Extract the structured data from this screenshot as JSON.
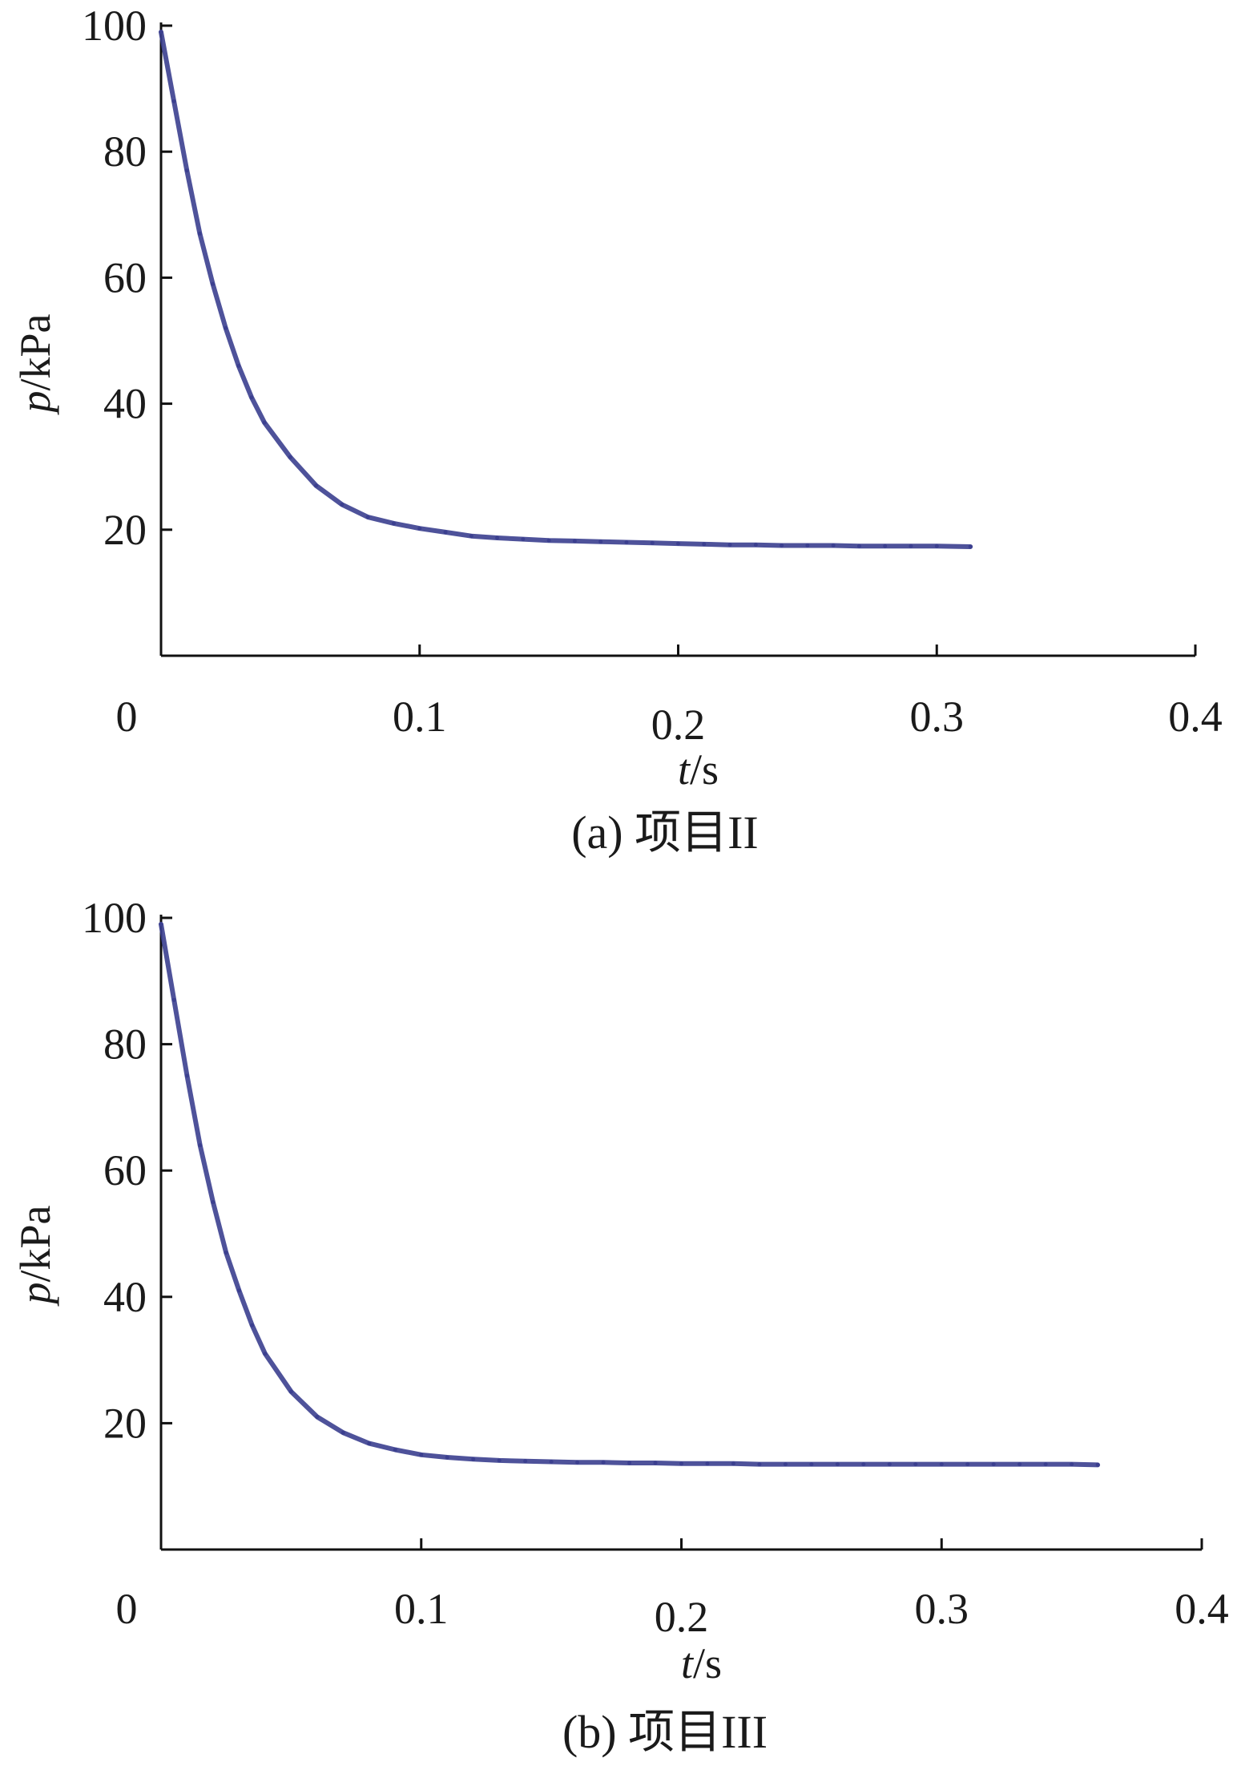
{
  "chart_data": [
    {
      "type": "line",
      "caption": "(a)  项目II",
      "xlabel_var": "t",
      "xlabel_unit": "/s",
      "ylabel_var": "p",
      "ylabel_unit": "/kPa",
      "xlim": [
        0,
        0.4
      ],
      "ylim": [
        0,
        100
      ],
      "xticks": [
        0,
        0.1,
        0.2,
        0.3,
        0.4
      ],
      "xtick_labels": [
        "0",
        "0.1",
        "0.2",
        "0.3",
        "0.4"
      ],
      "yticks": [
        20,
        40,
        60,
        80,
        100
      ],
      "ytick_labels": [
        "20",
        "40",
        "60",
        "80",
        "100"
      ],
      "grid": false,
      "series": [
        {
          "color": "#3b3f8f",
          "x": [
            0,
            0.005,
            0.01,
            0.015,
            0.02,
            0.025,
            0.03,
            0.035,
            0.04,
            0.05,
            0.06,
            0.07,
            0.08,
            0.09,
            0.1,
            0.11,
            0.12,
            0.13,
            0.14,
            0.15,
            0.16,
            0.17,
            0.18,
            0.19,
            0.2,
            0.21,
            0.22,
            0.23,
            0.24,
            0.25,
            0.26,
            0.27,
            0.28,
            0.29,
            0.3,
            0.313
          ],
          "y": [
            99,
            88,
            77,
            67,
            59,
            52,
            46,
            41,
            37,
            31.5,
            27,
            24,
            22,
            21,
            20.2,
            19.6,
            19,
            18.7,
            18.5,
            18.3,
            18.2,
            18.1,
            18,
            17.9,
            17.8,
            17.7,
            17.6,
            17.6,
            17.5,
            17.5,
            17.5,
            17.4,
            17.4,
            17.4,
            17.4,
            17.3
          ]
        }
      ]
    },
    {
      "type": "line",
      "caption": "(b)  项目III",
      "xlabel_var": "t",
      "xlabel_unit": "/s",
      "ylabel_var": "p",
      "ylabel_unit": "/kPa",
      "xlim": [
        0,
        0.4
      ],
      "ylim": [
        0,
        100
      ],
      "xticks": [
        0,
        0.1,
        0.2,
        0.3,
        0.4
      ],
      "xtick_labels": [
        "0",
        "0.1",
        "0.2",
        "0.3",
        "0.4"
      ],
      "yticks": [
        20,
        40,
        60,
        80,
        100
      ],
      "ytick_labels": [
        "20",
        "40",
        "60",
        "80",
        "100"
      ],
      "grid": false,
      "series": [
        {
          "color": "#3b3f8f",
          "x": [
            0,
            0.005,
            0.01,
            0.015,
            0.02,
            0.025,
            0.03,
            0.035,
            0.04,
            0.05,
            0.06,
            0.07,
            0.08,
            0.09,
            0.1,
            0.11,
            0.12,
            0.13,
            0.14,
            0.15,
            0.16,
            0.17,
            0.18,
            0.19,
            0.2,
            0.21,
            0.22,
            0.23,
            0.24,
            0.25,
            0.26,
            0.27,
            0.28,
            0.29,
            0.3,
            0.31,
            0.32,
            0.33,
            0.34,
            0.35,
            0.36
          ],
          "y": [
            99,
            87,
            75,
            64,
            55,
            47,
            41,
            35.5,
            31,
            25,
            21,
            18.5,
            16.8,
            15.8,
            15,
            14.6,
            14.3,
            14.1,
            14,
            13.9,
            13.8,
            13.8,
            13.7,
            13.7,
            13.6,
            13.6,
            13.6,
            13.5,
            13.5,
            13.5,
            13.5,
            13.5,
            13.5,
            13.5,
            13.5,
            13.5,
            13.5,
            13.5,
            13.5,
            13.5,
            13.4
          ]
        }
      ]
    }
  ]
}
